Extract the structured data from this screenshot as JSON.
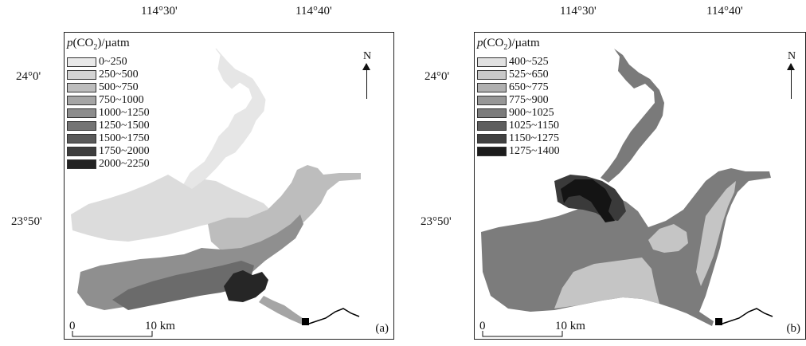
{
  "lon_ticks": [
    "114°30'",
    "114°40'"
  ],
  "lat_ticks": [
    "24°0'",
    "23°50'"
  ],
  "legend_title_prefix": "p",
  "legend_title_open": "(CO",
  "legend_title_sub": "2",
  "legend_title_close": ")/µatm",
  "north_label": "N",
  "scale_zero": "0",
  "scale_ten": "10 km",
  "panels": [
    {
      "label": "(a)",
      "legend": [
        {
          "range": "0~250",
          "color": "#e9e9e9"
        },
        {
          "range": "250~500",
          "color": "#d3d3d3"
        },
        {
          "range": "500~750",
          "color": "#bdbdbd"
        },
        {
          "range": "750~1000",
          "color": "#a5a5a5"
        },
        {
          "range": "1000~1250",
          "color": "#8c8c8c"
        },
        {
          "range": "1250~1500",
          "color": "#747474"
        },
        {
          "range": "1500~1750",
          "color": "#5a5a5a"
        },
        {
          "range": "1750~2000",
          "color": "#3d3d3d"
        },
        {
          "range": "2000~2250",
          "color": "#232323"
        }
      ]
    },
    {
      "label": "(b)",
      "legend": [
        {
          "range": "400~525",
          "color": "#e1e1e1"
        },
        {
          "range": "525~650",
          "color": "#c9c9c9"
        },
        {
          "range": "650~775",
          "color": "#b0b0b0"
        },
        {
          "range": "775~900",
          "color": "#979797"
        },
        {
          "range": "900~1025",
          "color": "#7c7c7c"
        },
        {
          "range": "1025~1150",
          "color": "#5e5e5e"
        },
        {
          "range": "1150~1275",
          "color": "#414141"
        },
        {
          "range": "1275~1400",
          "color": "#1c1c1c"
        }
      ]
    }
  ]
}
